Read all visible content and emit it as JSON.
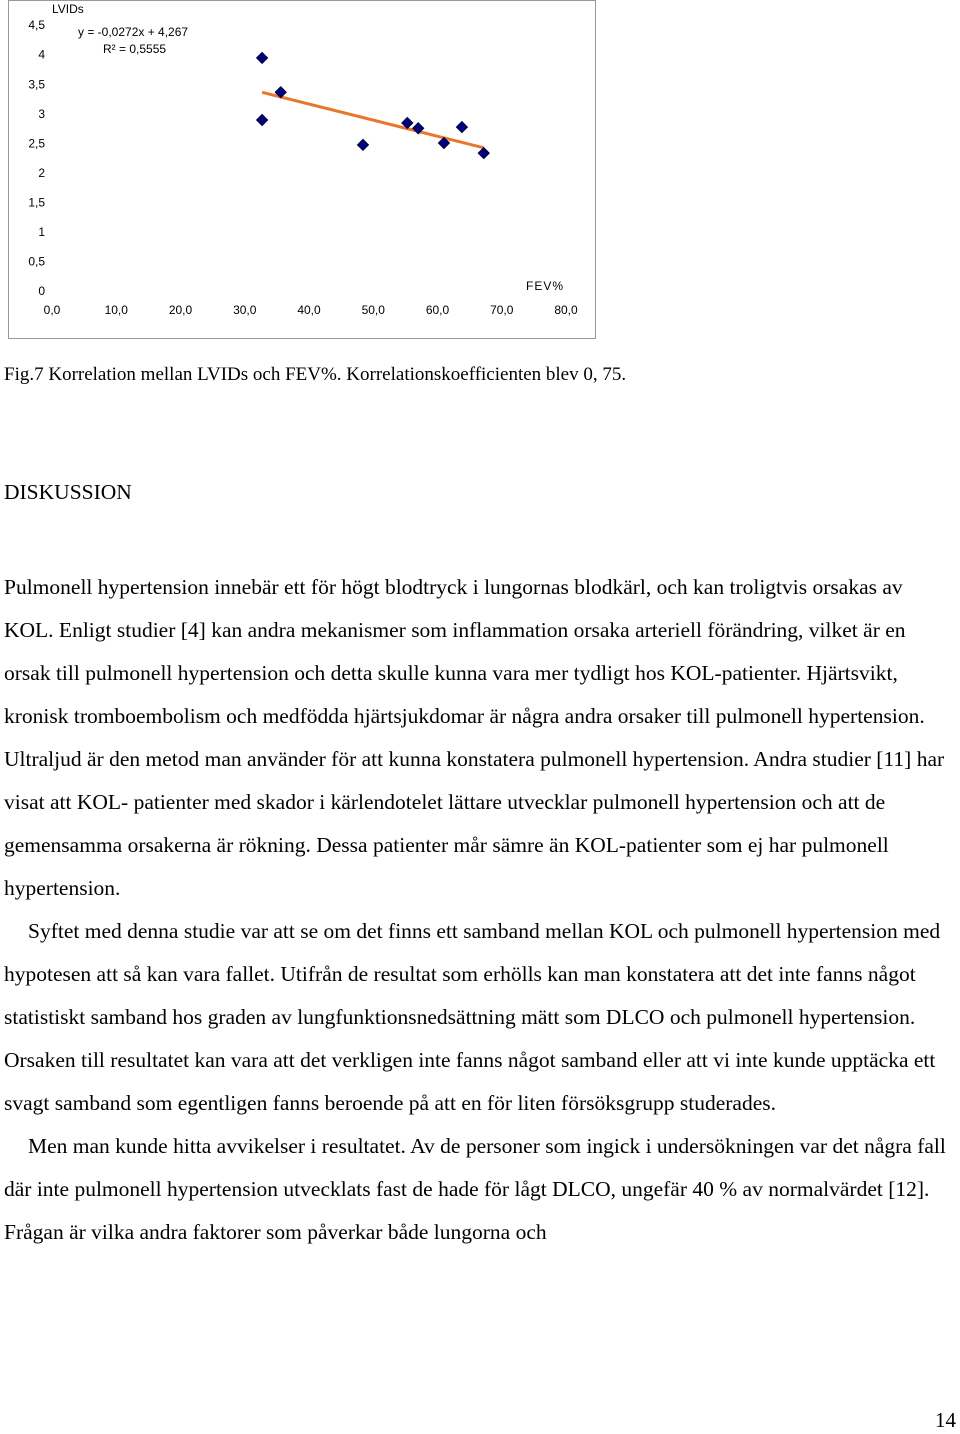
{
  "chart_data": {
    "type": "scatter",
    "y_label": "LVIDs",
    "x_label": "FEV%",
    "annotations": [
      "y = -0,0272x + 4,267",
      "R² = 0,5555"
    ],
    "x": [
      32.7,
      32.7,
      35.6,
      48.4,
      55.3,
      57.0,
      61.0,
      63.8,
      67.2
    ],
    "values": [
      3.96,
      2.91,
      3.38,
      2.49,
      2.86,
      2.77,
      2.52,
      2.79,
      2.35
    ],
    "color": "#000080",
    "trendline": {
      "slope": -0.0272,
      "intercept": 4.267,
      "color": "#e8762d"
    },
    "xlim": [
      0,
      80
    ],
    "ylim": [
      0,
      4.5
    ],
    "xticks": [
      {
        "value": 0,
        "label": "0,0"
      },
      {
        "value": 10,
        "label": "10,0"
      },
      {
        "value": 20,
        "label": "20,0"
      },
      {
        "value": 30,
        "label": "30,0"
      },
      {
        "value": 40,
        "label": "40,0"
      },
      {
        "value": 50,
        "label": "50,0"
      },
      {
        "value": 60,
        "label": "60,0"
      },
      {
        "value": 70,
        "label": "70,0"
      },
      {
        "value": 80,
        "label": "80,0"
      }
    ],
    "yticks": [
      0,
      {
        "value": 0.5,
        "label": "0,5"
      },
      1,
      {
        "value": 1.5,
        "label": "1,5"
      },
      2,
      {
        "value": 2.5,
        "label": "2,5"
      },
      3,
      {
        "value": 3.5,
        "label": "3,5"
      },
      4,
      {
        "value": 4.5,
        "label": "4,5"
      }
    ],
    "grid": false
  },
  "document": {
    "caption": "Fig.7 Korrelation mellan LVIDs och FEV%. Korrelationskoefficienten blev 0, 75.",
    "heading": "DISKUSSION",
    "paragraphs": [
      "Pulmonell hypertension innebär ett för högt blodtryck i lungornas blodkärl, och kan troligtvis orsakas av KOL. Enligt studier [4] kan andra mekanismer som inflammation orsaka arteriell förändring, vilket är en orsak till pulmonell hypertension och detta skulle kunna vara mer tydligt hos KOL-patienter. Hjärtsvikt, kronisk tromboembolism och medfödda hjärtsjukdomar är några andra orsaker till pulmonell hypertension. Ultraljud är den metod man använder för att kunna konstatera pulmonell hypertension. Andra studier [11] har visat att KOL- patienter med skador i kärlendotelet lättare utvecklar pulmonell hypertension och att de gemensamma orsakerna är rökning. Dessa patienter mår sämre än KOL-patienter som ej har pulmonell hypertension.",
      "Syftet med denna studie var att se om det finns ett samband mellan KOL och pulmonell hypertension med hypotesen att så kan vara fallet. Utifrån de resultat som erhölls kan man konstatera att det inte fanns något statistiskt samband hos graden av lungfunktionsnedsättning mätt som DLCO och pulmonell hypertension. Orsaken till resultatet kan vara att det verkligen inte fanns något samband eller att vi inte kunde upptäcka ett svagt samband som egentligen fanns beroende på att en för liten försöksgrupp studerades.",
      "Men man kunde hitta avvikelser i resultatet. Av de personer som ingick i undersökningen var det några fall där inte pulmonell hypertension utvecklats fast de hade för lågt DLCO, ungefär 40 % av normalvärdet [12]. Frågan är vilka andra faktorer som påverkar både lungorna och"
    ],
    "page_number": "14"
  }
}
